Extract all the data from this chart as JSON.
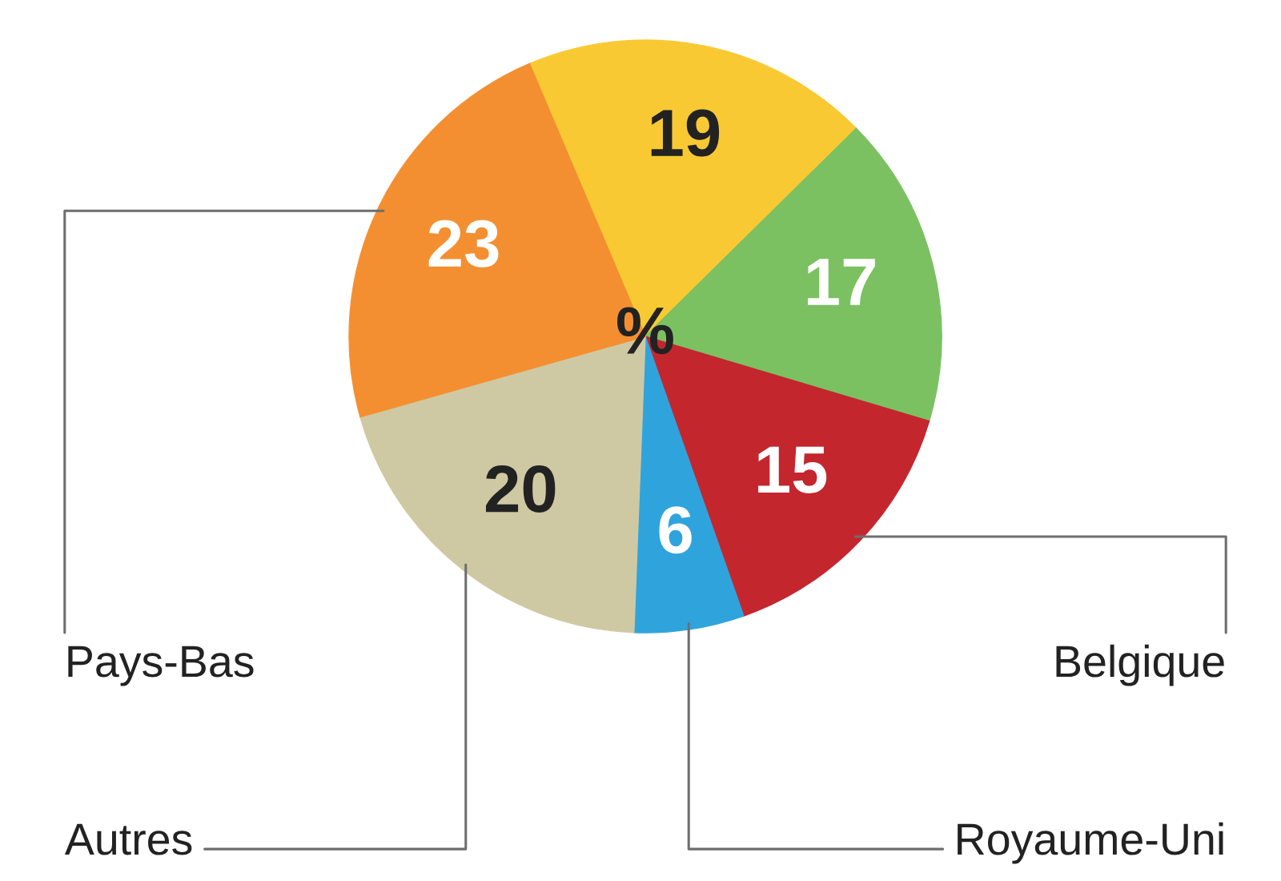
{
  "chart_data": {
    "type": "pie",
    "categories": [
      null,
      null,
      "Belgique",
      "Royaume-Uni",
      "Autres",
      "Pays-Bas"
    ],
    "values": [
      19,
      17,
      15,
      6,
      20,
      23
    ],
    "colors": [
      "#f9c933",
      "#7bc162",
      "#c4262e",
      "#2fa4dc",
      "#cfc9a3",
      "#f48f31"
    ],
    "data_labels": true,
    "annotations": [
      "%"
    ]
  }
}
